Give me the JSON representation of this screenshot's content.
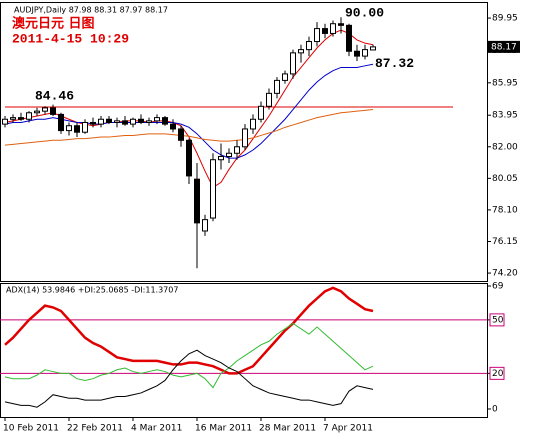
{
  "header": "AUDJPY,Daily 87.98 88.31 87.97 88.17",
  "chart_data": [
    {
      "type": "candlestick",
      "title": "澳元日元 日图",
      "subtitle": "2011-4-15 10:29",
      "categories": [
        "10 Feb 2011",
        null,
        null,
        null,
        null,
        null,
        null,
        null,
        "22 Feb 2011",
        null,
        null,
        null,
        null,
        null,
        null,
        null,
        "4 Mar 2011",
        null,
        null,
        null,
        null,
        null,
        null,
        null,
        "16 Mar 2011",
        null,
        null,
        null,
        null,
        null,
        null,
        null,
        "28 Mar 2011",
        null,
        null,
        null,
        null,
        null,
        null,
        null,
        "7 Apr 2011",
        null,
        null,
        null,
        null,
        null,
        null
      ],
      "open": [
        83.4,
        83.7,
        83.8,
        83.7,
        84.1,
        84.2,
        84.4,
        84.0,
        83.0,
        83.3,
        82.9,
        83.5,
        83.4,
        83.7,
        83.5,
        83.6,
        83.4,
        83.7,
        83.5,
        83.6,
        83.8,
        83.4,
        83.1,
        82.4,
        80.0,
        76.8,
        77.6,
        81.2,
        81.4,
        81.6,
        82.0,
        83.1,
        83.7,
        84.5,
        85.3,
        86.1,
        86.5,
        87.8,
        88.0,
        88.5,
        89.3,
        89.0,
        89.6,
        89.5,
        87.9,
        87.6,
        87.98
      ],
      "high": [
        83.9,
        84.0,
        84.1,
        84.2,
        84.4,
        84.5,
        84.6,
        84.1,
        83.5,
        83.5,
        83.7,
        83.8,
        83.9,
        83.9,
        83.8,
        83.9,
        83.8,
        84.0,
        83.8,
        84.0,
        83.9,
        83.7,
        83.3,
        82.5,
        81.0,
        77.8,
        81.6,
        82.2,
        81.9,
        82.4,
        83.4,
        84.0,
        84.8,
        85.6,
        86.3,
        86.7,
        88.0,
        88.3,
        88.8,
        89.7,
        89.6,
        89.8,
        90.0,
        89.6,
        88.3,
        88.3,
        88.31
      ],
      "low": [
        83.2,
        83.5,
        83.6,
        83.5,
        83.9,
        84.0,
        83.9,
        82.8,
        82.7,
        82.6,
        82.8,
        83.2,
        83.2,
        83.4,
        83.2,
        83.3,
        83.2,
        83.4,
        83.3,
        83.4,
        83.3,
        82.9,
        82.0,
        79.7,
        74.5,
        76.5,
        77.4,
        80.6,
        81.0,
        81.2,
        81.8,
        82.8,
        83.5,
        84.3,
        85.0,
        85.9,
        86.2,
        87.2,
        87.6,
        88.2,
        88.7,
        88.8,
        89.0,
        87.6,
        87.3,
        87.4,
        87.97
      ],
      "close": [
        83.7,
        83.8,
        83.7,
        84.1,
        84.2,
        84.4,
        84.0,
        83.0,
        83.3,
        82.9,
        83.5,
        83.4,
        83.7,
        83.5,
        83.6,
        83.4,
        83.7,
        83.5,
        83.6,
        83.8,
        83.4,
        83.1,
        82.4,
        80.2,
        77.3,
        77.5,
        81.2,
        81.4,
        81.6,
        82.0,
        83.1,
        83.7,
        84.5,
        85.3,
        86.1,
        86.5,
        87.8,
        88.0,
        88.5,
        89.3,
        89.0,
        89.6,
        89.5,
        87.9,
        87.6,
        88.0,
        88.17
      ],
      "series": [
        {
          "color": "#e00000",
          "values": [
            83.5,
            83.6,
            83.7,
            83.8,
            83.9,
            84.0,
            84.1,
            83.9,
            83.7,
            83.5,
            83.4,
            83.3,
            83.4,
            83.5,
            83.5,
            83.6,
            83.6,
            83.6,
            83.5,
            83.6,
            83.6,
            83.5,
            83.3,
            82.6,
            81.6,
            80.5,
            79.5,
            79.8,
            80.6,
            81.3,
            81.8,
            82.5,
            83.2,
            83.9,
            84.7,
            85.5,
            86.3,
            86.9,
            87.5,
            88.1,
            88.6,
            89.0,
            89.2,
            89.0,
            88.6,
            88.4,
            88.3
          ]
        },
        {
          "color": "#0000cc",
          "values": [
            83.4,
            83.5,
            83.5,
            83.6,
            83.7,
            83.7,
            83.8,
            83.7,
            83.6,
            83.5,
            83.5,
            83.4,
            83.4,
            83.5,
            83.5,
            83.5,
            83.5,
            83.5,
            83.5,
            83.5,
            83.5,
            83.5,
            83.4,
            83.2,
            82.8,
            82.3,
            81.8,
            81.5,
            81.3,
            81.3,
            81.5,
            81.8,
            82.2,
            82.7,
            83.2,
            83.7,
            84.3,
            84.9,
            85.5,
            86.0,
            86.4,
            86.7,
            86.9,
            86.9,
            86.9,
            87.0,
            87.1
          ]
        },
        {
          "color": "#e06010",
          "values": [
            82.1,
            82.15,
            82.2,
            82.25,
            82.3,
            82.35,
            82.4,
            82.4,
            82.45,
            82.5,
            82.5,
            82.55,
            82.6,
            82.6,
            82.65,
            82.7,
            82.7,
            82.75,
            82.8,
            82.8,
            82.8,
            82.75,
            82.7,
            82.65,
            82.55,
            82.45,
            82.4,
            82.35,
            82.35,
            82.4,
            82.45,
            82.55,
            82.7,
            82.85,
            83.0,
            83.2,
            83.35,
            83.5,
            83.65,
            83.8,
            83.9,
            84.0,
            84.1,
            84.15,
            84.2,
            84.25,
            84.3
          ]
        }
      ],
      "annotations": [
        {
          "value": 90,
          "label": "90.00",
          "color": "#e00000"
        },
        {
          "value": 87.32,
          "color": "#0000cc"
        },
        {
          "value": 84.46,
          "color": "#e00000",
          "line": true
        }
      ],
      "current_price": 88.17,
      "ylim": [
        73.71,
        90.88
      ],
      "yticks": [
        {
          "value": 74.2,
          "label": "74.20"
        },
        76.15,
        {
          "value": 78.1,
          "label": "78.10"
        },
        80.05,
        {
          "value": 82,
          "label": "82.00"
        },
        83.95,
        85.95,
        87.95,
        89.95
      ]
    },
    {
      "type": "line",
      "title": "ADX(14) 53.9846 +DI:25.0685 -DI:11.3707",
      "series": [
        {
          "color": "#e00000",
          "width": 2.5,
          "values": [
            36,
            40,
            45,
            50,
            54,
            58,
            57,
            55,
            50,
            45,
            40,
            37,
            35,
            32,
            29,
            28,
            27,
            27,
            27,
            27,
            26,
            25,
            25,
            26,
            26,
            25,
            24,
            22,
            20,
            20,
            22,
            24,
            29,
            34,
            39,
            44,
            48,
            53,
            58,
            62,
            66,
            68,
            66,
            62,
            59,
            56,
            55
          ]
        },
        {
          "color": "#33bb33",
          "width": 1,
          "values": [
            18,
            17,
            17,
            17,
            19,
            22,
            21,
            20,
            20,
            17,
            16,
            17,
            19,
            20,
            22,
            23,
            21,
            20,
            21,
            22,
            21,
            19,
            18,
            19,
            20,
            17,
            12,
            20,
            23,
            27,
            30,
            33,
            36,
            38,
            42,
            45,
            48,
            45,
            42,
            46,
            42,
            38,
            34,
            30,
            26,
            22,
            24
          ]
        },
        {
          "color": "#000000",
          "width": 1,
          "values": [
            4,
            3,
            2,
            2,
            1,
            4,
            8,
            7,
            6,
            6,
            5,
            5,
            5,
            6,
            7,
            7,
            8,
            9,
            11,
            13,
            16,
            22,
            27,
            31,
            33,
            30,
            28,
            26,
            23,
            21,
            17,
            13,
            11,
            9,
            8,
            7,
            6,
            5,
            5,
            4,
            3,
            2,
            3,
            10,
            13,
            12,
            11
          ]
        }
      ],
      "levels": [
        20,
        50
      ],
      "level_color": "#cc0077",
      "ylim": [
        -4.5,
        70.7
      ],
      "yticks": [
        0,
        20,
        50,
        69
      ]
    }
  ]
}
